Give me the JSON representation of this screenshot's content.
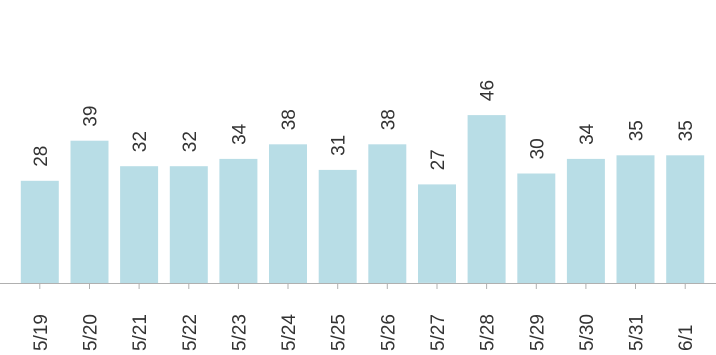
{
  "chart_data": {
    "type": "bar",
    "categories": [
      "5/19",
      "5/20",
      "5/21",
      "5/22",
      "5/23",
      "5/24",
      "5/25",
      "5/26",
      "5/27",
      "5/28",
      "5/29",
      "5/30",
      "5/31",
      "6/1"
    ],
    "values": [
      28,
      39,
      32,
      32,
      34,
      38,
      31,
      38,
      27,
      46,
      30,
      34,
      35,
      35
    ],
    "title": "",
    "xlabel": "",
    "ylabel": "",
    "ylim": [
      0,
      46
    ],
    "grid": false,
    "legend": "none",
    "bar_color": "#b8dde6",
    "data_labels": true
  }
}
